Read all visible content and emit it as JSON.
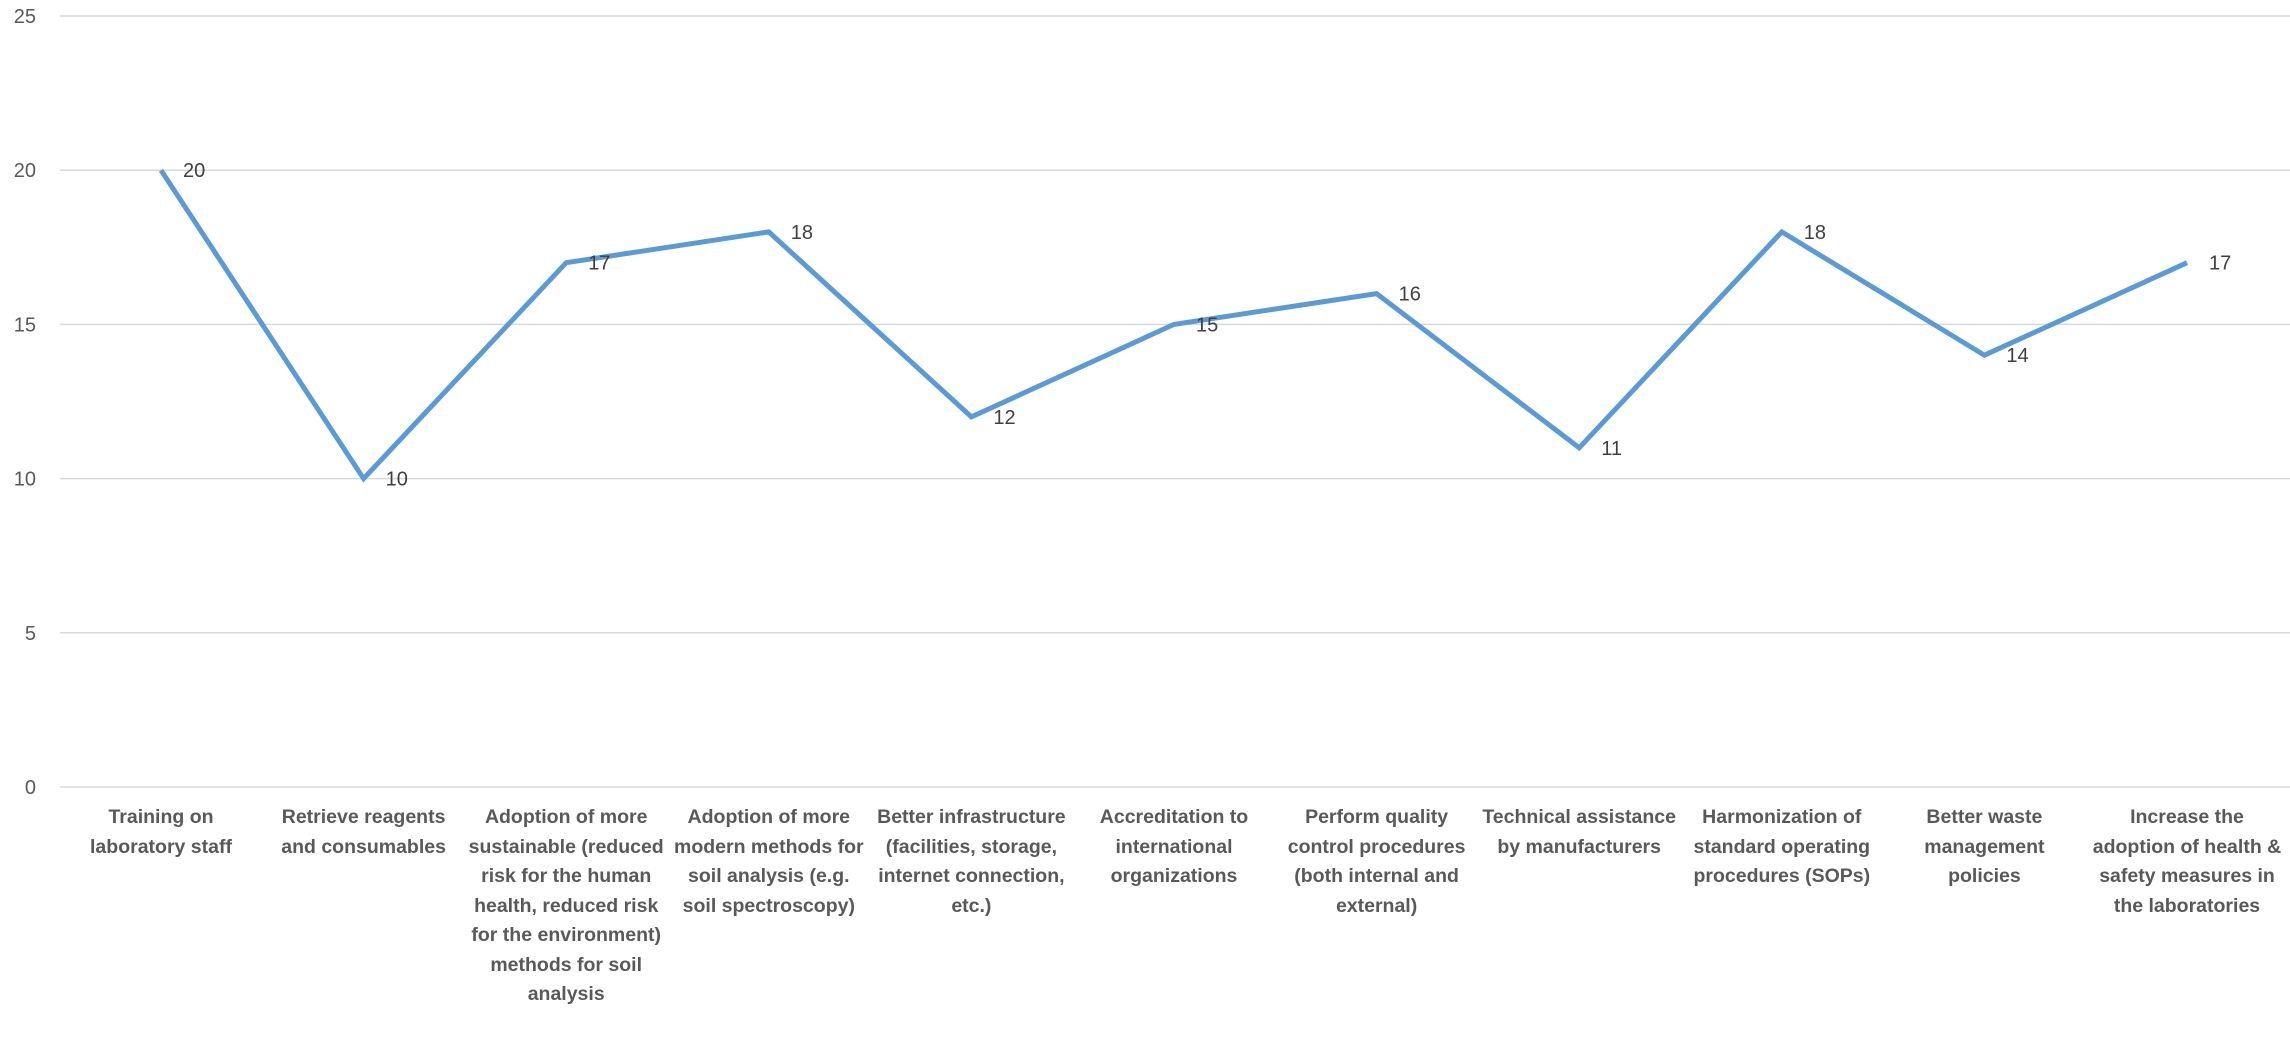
{
  "chart_data": {
    "type": "line",
    "title": "",
    "xlabel": "",
    "ylabel": "",
    "ylim": [
      0,
      25
    ],
    "yticks": [
      0,
      5,
      10,
      15,
      20,
      25
    ],
    "grid": true,
    "legend": "none",
    "line_color": "#5b9bd5",
    "categories": [
      "Training on laboratory staff",
      "Retrieve reagents and consumables",
      "Adoption of more sustainable (reduced risk for the human health, reduced risk for the environment) methods for soil analysis",
      "Adoption of more modern methods for soil analysis (e.g. soil spectroscopy)",
      "Better infrastructure (facilities, storage, internet connection, etc.)",
      "Accreditation to international organizations",
      "Perform quality control procedures (both internal and external)",
      "Technical assistance by manufacturers",
      "Harmonization of standard operating procedures (SOPs)",
      "Better waste management policies",
      "Increase the adoption of health & safety measures in the laboratories"
    ],
    "series": [
      {
        "values": [
          20,
          10,
          17,
          18,
          12,
          15,
          16,
          11,
          18,
          14,
          17
        ]
      }
    ]
  }
}
